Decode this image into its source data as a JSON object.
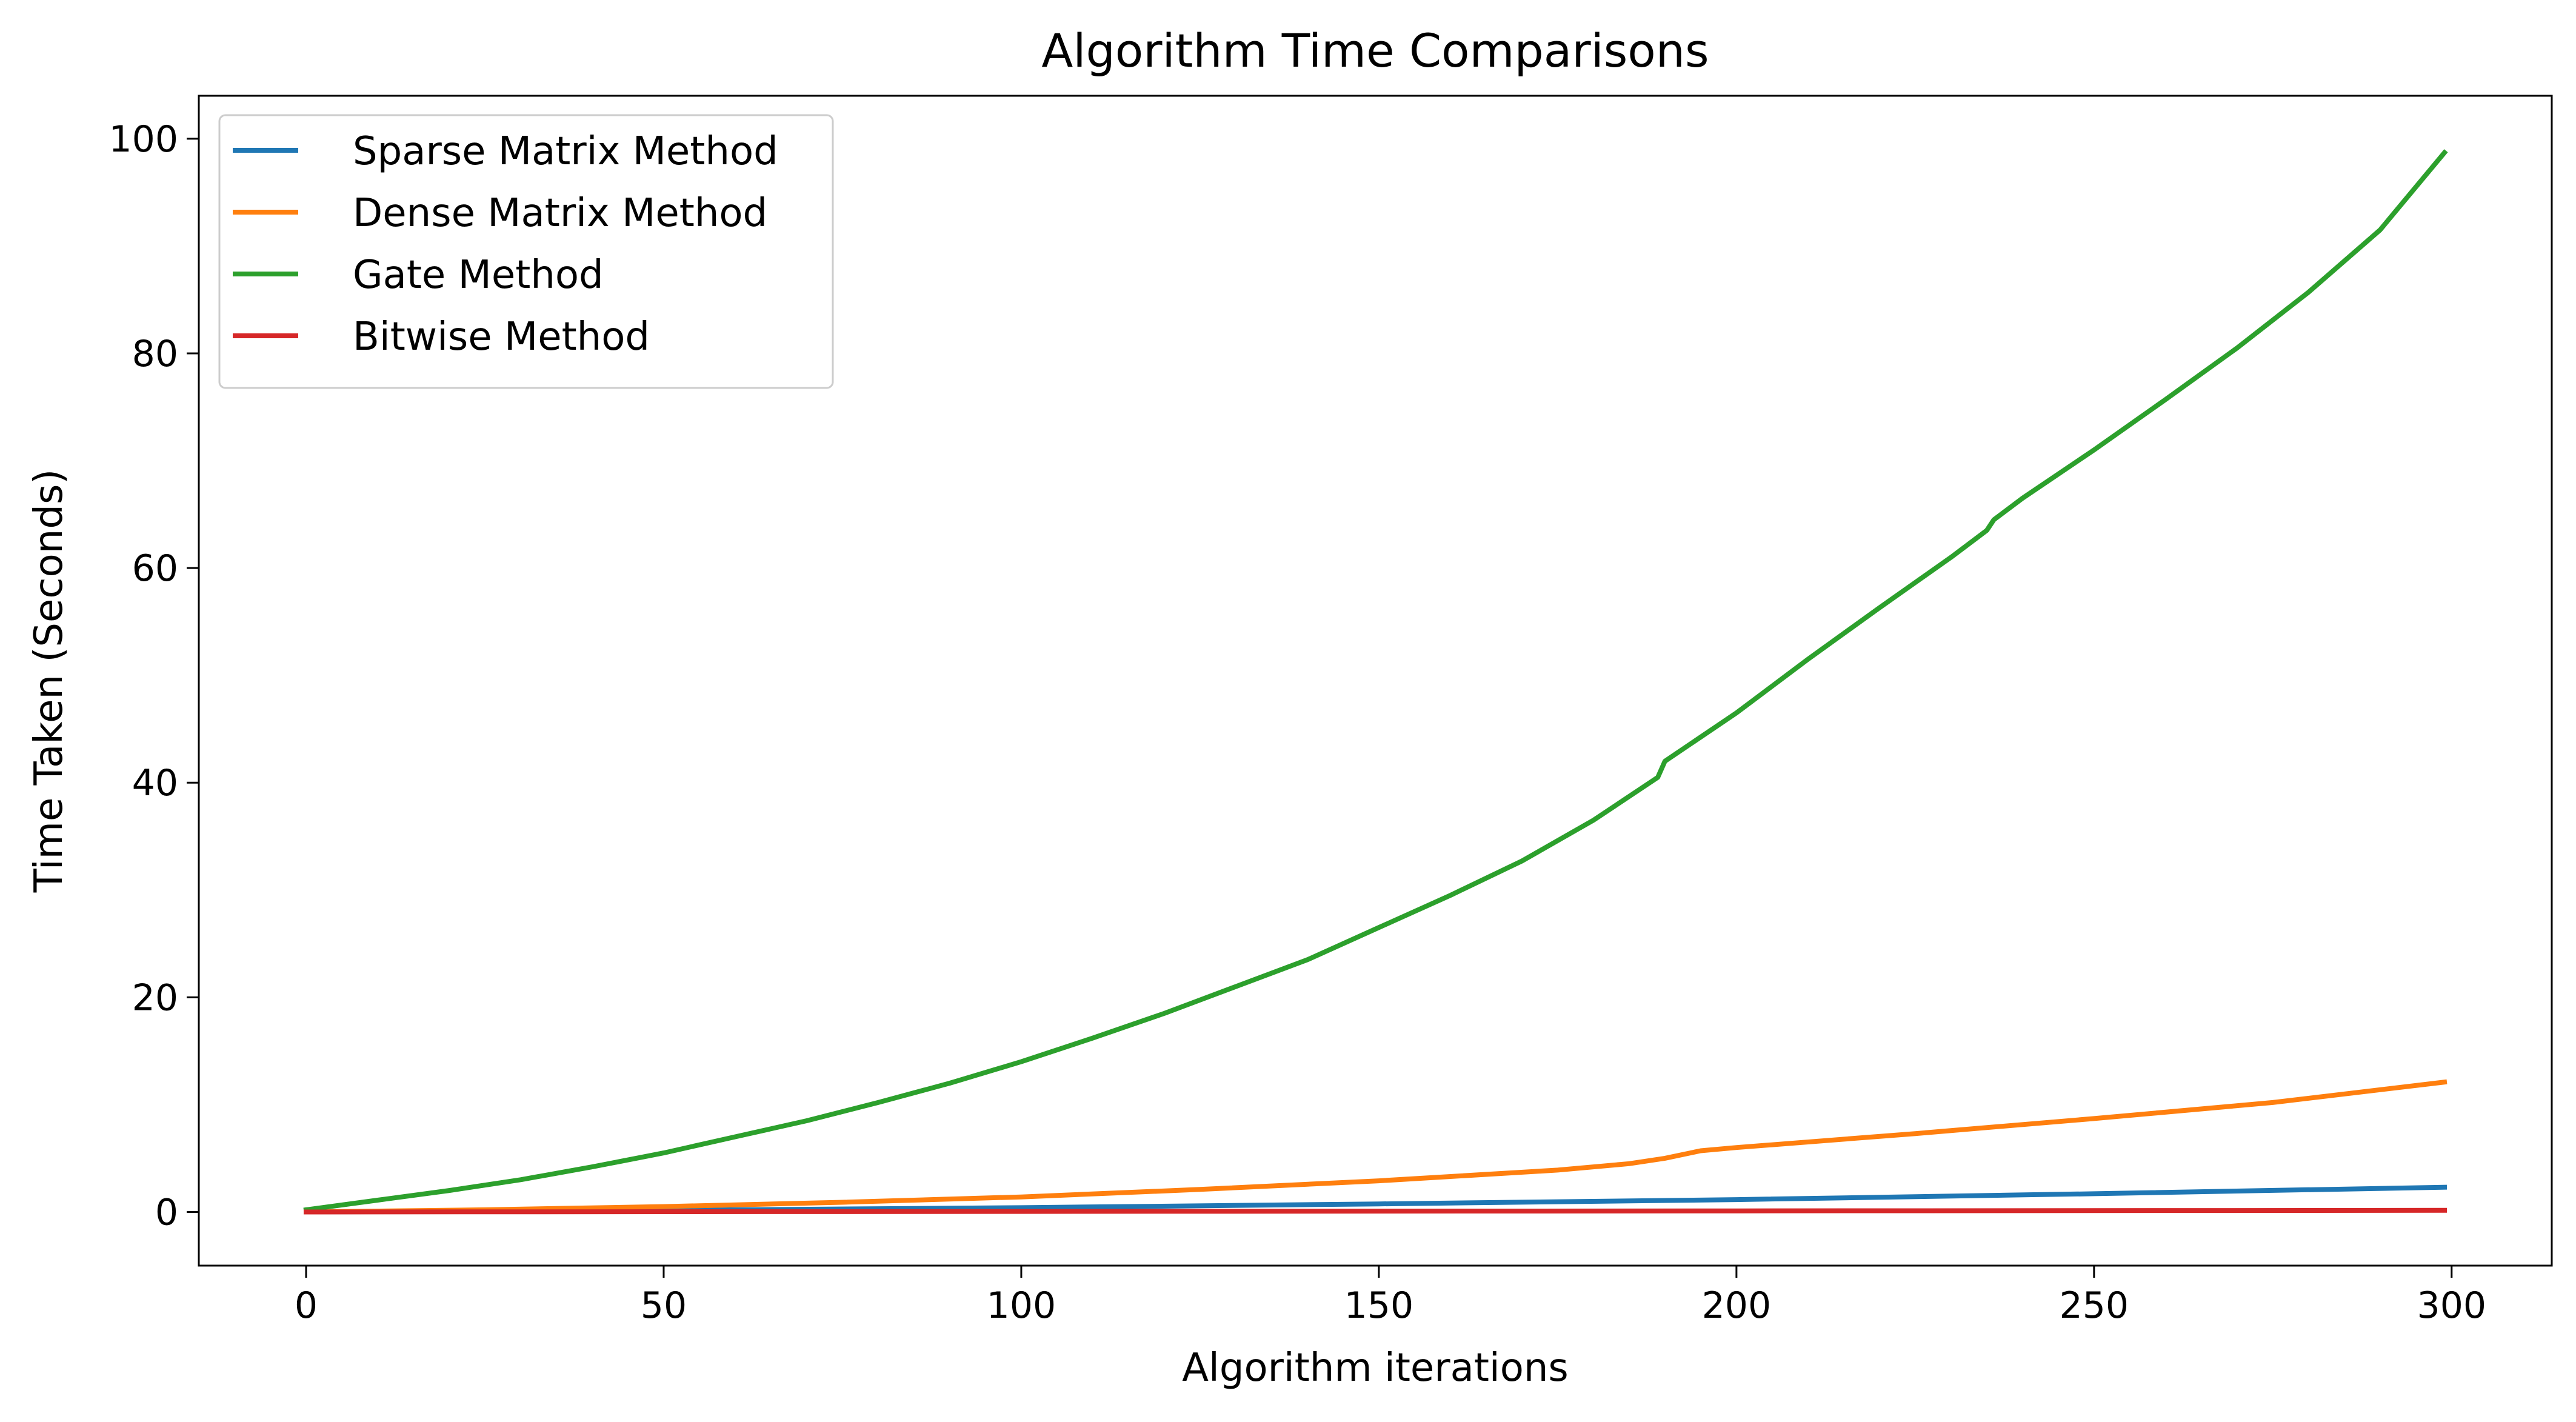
{
  "chart_data": {
    "type": "line",
    "title": "Algorithm Time Comparisons",
    "xlabel": "Algorithm iterations",
    "ylabel": "Time Taken (Seconds)",
    "xlim": [
      -15,
      314
    ],
    "ylim": [
      -5,
      104
    ],
    "xticks": [
      0,
      50,
      100,
      150,
      200,
      250,
      300
    ],
    "yticks": [
      0,
      20,
      40,
      60,
      80,
      100
    ],
    "xtick_labels": [
      "0",
      "50",
      "100",
      "150",
      "200",
      "250",
      "300"
    ],
    "ytick_labels": [
      "0",
      "20",
      "40",
      "60",
      "80",
      "100"
    ],
    "grid": false,
    "legend_position": "upper-left",
    "series": [
      {
        "name": "Sparse Matrix Method",
        "color": "#1f77b4",
        "x": [
          0,
          50,
          100,
          150,
          200,
          250,
          299
        ],
        "y": [
          0.0,
          0.15,
          0.4,
          0.75,
          1.15,
          1.7,
          2.3
        ]
      },
      {
        "name": "Dense Matrix Method",
        "color": "#ff7f0e",
        "x": [
          0,
          25,
          50,
          75,
          100,
          125,
          150,
          175,
          185,
          190,
          195,
          200,
          225,
          250,
          275,
          299
        ],
        "y": [
          0.0,
          0.2,
          0.5,
          0.9,
          1.4,
          2.1,
          2.9,
          3.9,
          4.5,
          5.0,
          5.7,
          6.0,
          7.3,
          8.7,
          10.2,
          12.1
        ]
      },
      {
        "name": "Gate Method",
        "color": "#2ca02c",
        "x": [
          0,
          10,
          20,
          30,
          40,
          50,
          60,
          70,
          80,
          90,
          100,
          110,
          120,
          130,
          140,
          150,
          160,
          170,
          180,
          189,
          190,
          200,
          210,
          220,
          230,
          235,
          236,
          240,
          250,
          260,
          270,
          280,
          290,
          299
        ],
        "y": [
          0.2,
          1.1,
          2.0,
          3.0,
          4.2,
          5.5,
          7.0,
          8.5,
          10.2,
          12.0,
          14.0,
          16.2,
          18.5,
          21.0,
          23.5,
          26.5,
          29.5,
          32.7,
          36.5,
          40.5,
          42.0,
          46.5,
          51.5,
          56.3,
          61.0,
          63.5,
          64.5,
          66.5,
          71.0,
          75.7,
          80.5,
          85.7,
          91.5,
          98.7
        ]
      },
      {
        "name": "Bitwise Method",
        "color": "#d62728",
        "x": [
          0,
          100,
          200,
          299
        ],
        "y": [
          0.0,
          0.05,
          0.1,
          0.15
        ]
      }
    ]
  }
}
